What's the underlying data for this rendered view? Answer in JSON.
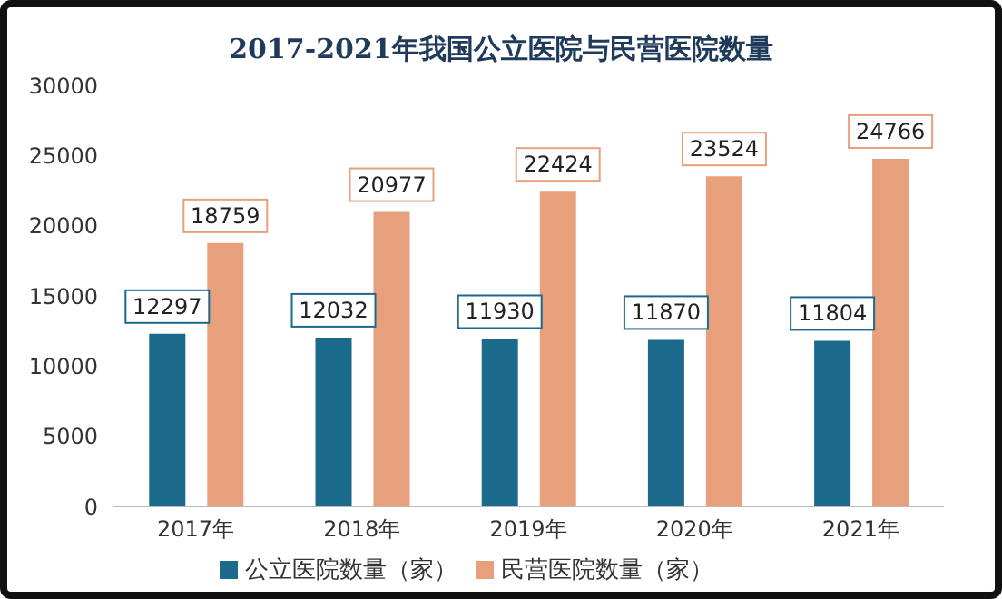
{
  "chart_data": {
    "type": "bar",
    "title": "2017-2021年我国公立医院与民营医院数量",
    "categories": [
      "2017年",
      "2018年",
      "2019年",
      "2020年",
      "2021年"
    ],
    "series": [
      {
        "name": "公立医院数量（家）",
        "color": "#1b6a8c",
        "values": [
          12297,
          12032,
          11930,
          11870,
          11804
        ]
      },
      {
        "name": "民营医院数量（家）",
        "color": "#e8a07c",
        "values": [
          18759,
          20977,
          22424,
          23524,
          24766
        ]
      }
    ],
    "ylim": [
      0,
      30000
    ],
    "yticks": [
      0,
      5000,
      10000,
      15000,
      20000,
      25000,
      30000
    ],
    "grid": false,
    "legend": "bottom",
    "data_labels": true
  }
}
